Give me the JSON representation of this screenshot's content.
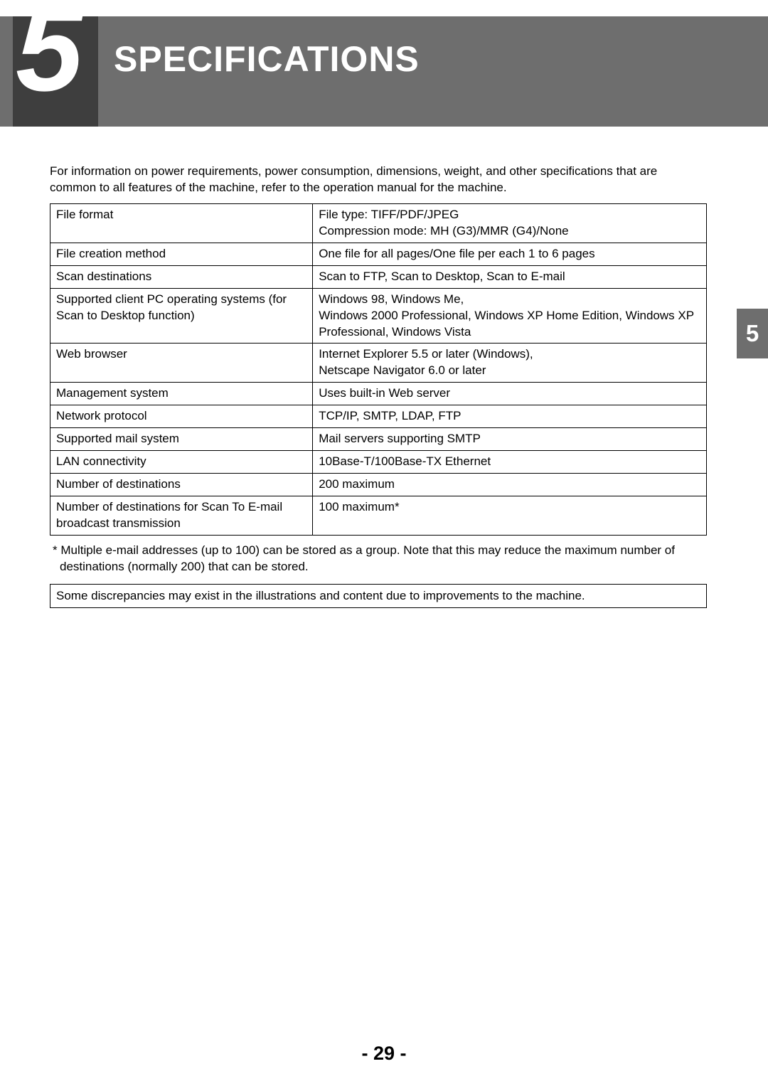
{
  "header": {
    "chapter_number": "5",
    "title": "SPECIFICATIONS"
  },
  "side_tab": "5",
  "intro": "For information on power requirements, power consumption, dimensions, weight, and other specifications that are common to all features of the machine, refer to the operation manual for the machine.",
  "table": {
    "rows": [
      {
        "label": "File format",
        "value": "File type: TIFF/PDF/JPEG\nCompression mode: MH (G3)/MMR (G4)/None"
      },
      {
        "label": "File creation method",
        "value": "One file for all pages/One file per each 1 to 6 pages"
      },
      {
        "label": "Scan destinations",
        "value": "Scan to FTP, Scan to Desktop, Scan to E-mail"
      },
      {
        "label": "Supported client PC operating systems (for Scan to Desktop function)",
        "value": "Windows 98, Windows Me,\nWindows 2000 Professional, Windows XP Home Edition, Windows XP Professional, Windows Vista"
      },
      {
        "label": "Web browser",
        "value": "Internet Explorer 5.5 or later (Windows),\nNetscape Navigator 6.0 or later"
      },
      {
        "label": "Management system",
        "value": "Uses built-in Web server"
      },
      {
        "label": "Network protocol",
        "value": "TCP/IP, SMTP, LDAP, FTP"
      },
      {
        "label": "Supported mail system",
        "value": "Mail servers supporting SMTP"
      },
      {
        "label": "LAN connectivity",
        "value": "10Base-T/100Base-TX Ethernet"
      },
      {
        "label": "Number of destinations",
        "value": "200 maximum"
      },
      {
        "label": "Number of destinations for Scan To E-mail broadcast transmission",
        "value": "100 maximum*"
      }
    ]
  },
  "footnote": "* Multiple e-mail addresses (up to 100) can be stored as a group. Note that this may reduce the maximum number of destinations (normally 200) that can be stored.",
  "disclaimer": "Some discrepancies may exist in the illustrations and content due to improvements to the machine.",
  "page_number": "- 29 -",
  "colors": {
    "header_bg": "#6e6e6e",
    "number_box_bg": "#3e3e3e",
    "text": "#000000",
    "header_text": "#ffffff",
    "side_tab_bg": "#6e6e6e",
    "page_bg": "#ffffff",
    "border": "#000000"
  },
  "fonts": {
    "title_size": 50,
    "number_size": 170,
    "body_size": 17,
    "page_num_size": 27,
    "side_tab_size": 33
  }
}
